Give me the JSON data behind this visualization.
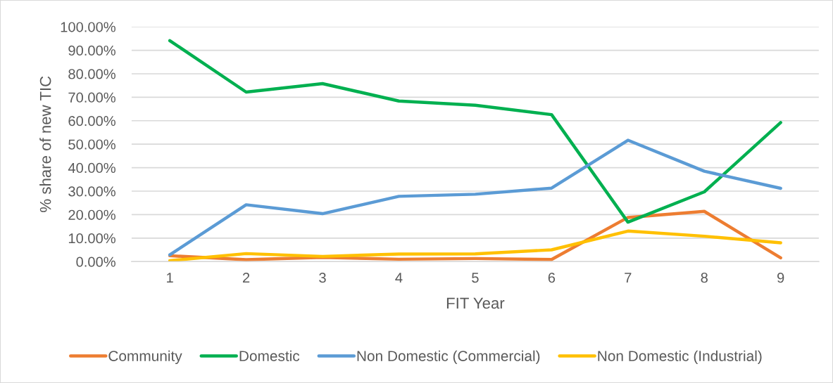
{
  "chart_data": {
    "type": "line",
    "xlabel": "FIT Year",
    "ylabel": "% share of new TIC",
    "categories": [
      "1",
      "2",
      "3",
      "4",
      "5",
      "6",
      "7",
      "8",
      "9"
    ],
    "series": [
      {
        "name": "Community",
        "color": "#ed7d31",
        "values": [
          2.5,
          0.8,
          1.8,
          1.0,
          1.3,
          0.9,
          18.8,
          21.4,
          1.6
        ]
      },
      {
        "name": "Domestic",
        "color": "#00b050",
        "values": [
          94.1,
          72.2,
          75.8,
          68.4,
          66.6,
          62.6,
          16.8,
          29.7,
          59.2
        ]
      },
      {
        "name": "Non Domestic (Commercial)",
        "color": "#5b9bd5",
        "values": [
          2.9,
          24.2,
          20.4,
          27.8,
          28.7,
          31.3,
          51.7,
          38.5,
          31.2
        ]
      },
      {
        "name": "Non Domestic (Industrial)",
        "color": "#ffc000",
        "values": [
          0.4,
          3.4,
          2.2,
          3.2,
          3.3,
          5.0,
          13.0,
          10.8,
          8.0
        ]
      }
    ],
    "ylim": [
      0,
      100
    ],
    "yticks": [
      {
        "value": 0,
        "label": "0.00%"
      },
      {
        "value": 10,
        "label": "10.00%"
      },
      {
        "value": 20,
        "label": "20.00%"
      },
      {
        "value": 30,
        "label": "30.00%"
      },
      {
        "value": 40,
        "label": "40.00%"
      },
      {
        "value": 50,
        "label": "50.00%"
      },
      {
        "value": 60,
        "label": "60.00%"
      },
      {
        "value": 70,
        "label": "70.00%"
      },
      {
        "value": 80,
        "label": "80.00%"
      },
      {
        "value": 90,
        "label": "90.00%"
      },
      {
        "value": 100,
        "label": "100.00%"
      }
    ],
    "grid": "y",
    "legend": "bottom",
    "line_style": "solid"
  }
}
